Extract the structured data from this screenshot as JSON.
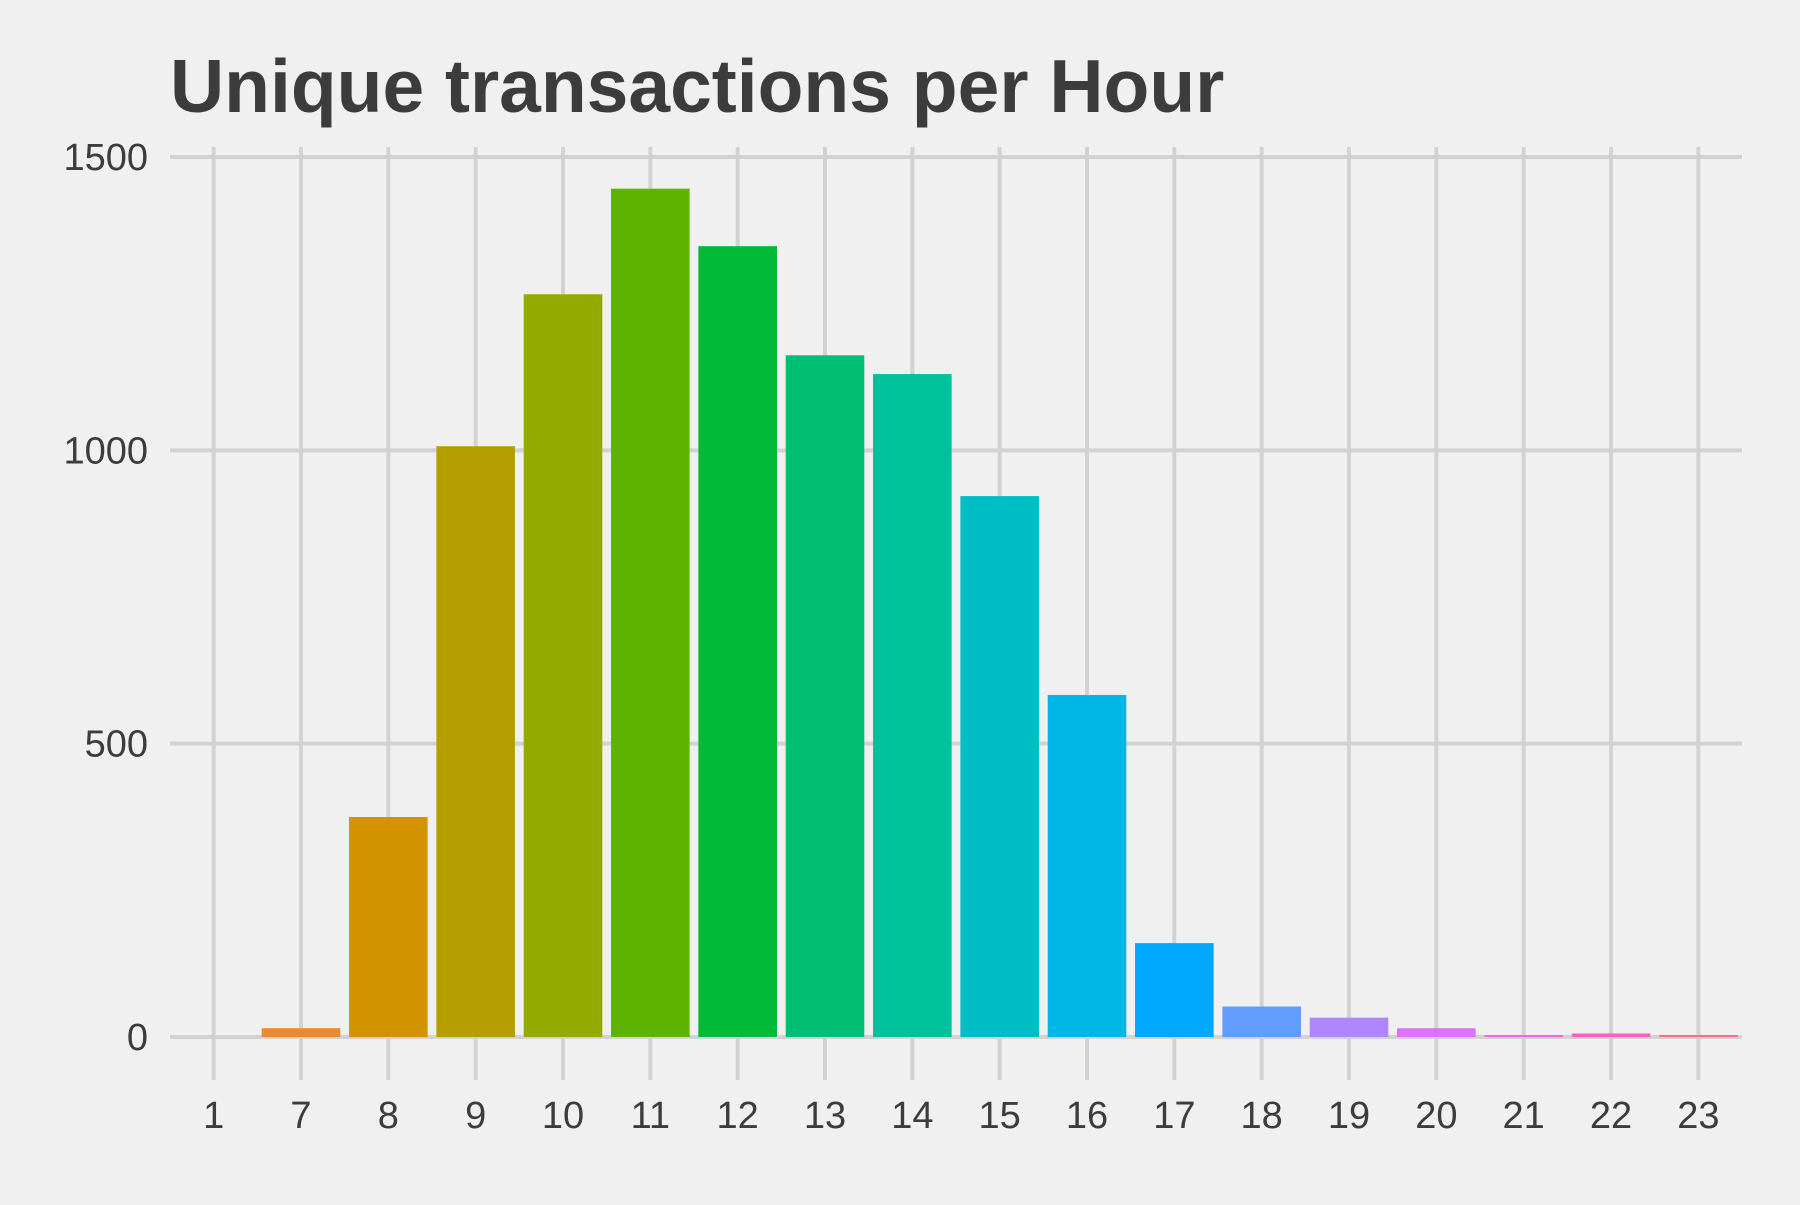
{
  "chart_data": {
    "type": "bar",
    "title": "Unique transactions per Hour",
    "xlabel": "",
    "ylabel": "",
    "categories": [
      "1",
      "7",
      "8",
      "9",
      "10",
      "11",
      "12",
      "13",
      "14",
      "15",
      "16",
      "17",
      "18",
      "19",
      "20",
      "21",
      "22",
      "23"
    ],
    "values": [
      0,
      15,
      375,
      1007,
      1266,
      1446,
      1348,
      1162,
      1130,
      922,
      583,
      160,
      52,
      33,
      15,
      2,
      6,
      2
    ],
    "colors": [
      "#f8766d",
      "#e98a33",
      "#d39200",
      "#b59f00",
      "#93aa00",
      "#5eb300",
      "#00ba38",
      "#00bf74",
      "#00c19c",
      "#00bfc4",
      "#00b8e7",
      "#00a9ff",
      "#619cff",
      "#ae87ff",
      "#db72fb",
      "#f564e3",
      "#ff61c3",
      "#ff6c91"
    ],
    "ylim": [
      0,
      1500
    ],
    "yticks": [
      0,
      500,
      1000,
      1500
    ],
    "grid": true,
    "legend": "none"
  }
}
